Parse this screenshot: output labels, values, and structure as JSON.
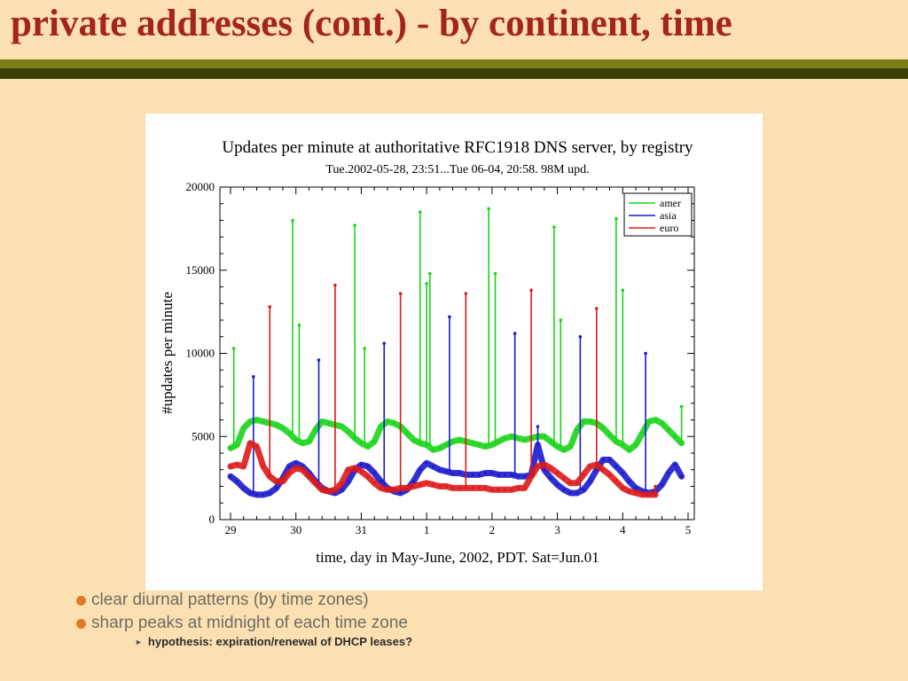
{
  "slide": {
    "title": "private addresses (cont.) - by continent, time",
    "bullets": [
      "clear diurnal patterns (by time zones)",
      "sharp peaks at midnight of each time zone"
    ],
    "sub_bullet": "hypothesis: expiration/renewal of DHCP leases?"
  },
  "colors": {
    "title": "#a3251b",
    "bar_top": "#7c7f17",
    "bar_bottom": "#3a4003",
    "background": "#fde0b2",
    "bullet": "#dc7a2a"
  },
  "chart_data": {
    "type": "line",
    "title": "Updates per minute at authoritative RFC1918 DNS server, by registry",
    "subtitle": "Tue.2002-05-28, 23:51...Tue 06-04, 20:58. 98M upd.",
    "xlabel": "time, day in May-June, 2002, PDT. Sat=Jun.01",
    "ylabel": "#updates per minute",
    "xlim": [
      28.99,
      35.3
    ],
    "ylim": [
      0,
      20000
    ],
    "x_ticks": [
      29,
      30,
      31,
      32,
      33,
      34,
      35,
      36
    ],
    "x_tick_labels": [
      "29",
      "30",
      "31",
      "1",
      "2",
      "3",
      "4",
      "5"
    ],
    "y_ticks": [
      0,
      5000,
      10000,
      15000,
      20000
    ],
    "y_tick_labels": [
      "0",
      "5000",
      "10000",
      "15000",
      "20000"
    ],
    "legend_position": "top-right",
    "grid": false,
    "series": [
      {
        "name": "amer",
        "color": "#19d419",
        "points": [
          [
            29.0,
            4300
          ],
          [
            29.1,
            4500
          ],
          [
            29.2,
            5500
          ],
          [
            29.3,
            5900
          ],
          [
            29.4,
            6000
          ],
          [
            29.5,
            5900
          ],
          [
            29.6,
            5800
          ],
          [
            29.7,
            5700
          ],
          [
            29.8,
            5500
          ],
          [
            29.9,
            5200
          ],
          [
            30.0,
            4800
          ],
          [
            30.1,
            4600
          ],
          [
            30.2,
            4700
          ],
          [
            30.3,
            5400
          ],
          [
            30.4,
            5900
          ],
          [
            30.5,
            5800
          ],
          [
            30.6,
            5700
          ],
          [
            30.7,
            5600
          ],
          [
            30.8,
            5300
          ],
          [
            30.9,
            4900
          ],
          [
            31.0,
            4600
          ],
          [
            31.1,
            4400
          ],
          [
            31.2,
            4700
          ],
          [
            31.3,
            5600
          ],
          [
            31.4,
            5900
          ],
          [
            31.5,
            5800
          ],
          [
            31.6,
            5600
          ],
          [
            31.7,
            5200
          ],
          [
            31.8,
            4800
          ],
          [
            31.9,
            4600
          ],
          [
            32.0,
            4500
          ],
          [
            32.1,
            4200
          ],
          [
            32.2,
            4300
          ],
          [
            32.3,
            4500
          ],
          [
            32.4,
            4700
          ],
          [
            32.5,
            4800
          ],
          [
            32.6,
            4700
          ],
          [
            32.7,
            4600
          ],
          [
            32.8,
            4500
          ],
          [
            32.9,
            4400
          ],
          [
            33.0,
            4500
          ],
          [
            33.1,
            4700
          ],
          [
            33.2,
            4900
          ],
          [
            33.3,
            5000
          ],
          [
            33.4,
            4900
          ],
          [
            33.5,
            4800
          ],
          [
            33.6,
            4900
          ],
          [
            33.7,
            5000
          ],
          [
            33.8,
            5000
          ],
          [
            33.9,
            4700
          ],
          [
            34.0,
            4400
          ],
          [
            34.1,
            4200
          ],
          [
            34.2,
            4400
          ],
          [
            34.3,
            5400
          ],
          [
            34.4,
            5900
          ],
          [
            34.5,
            5900
          ],
          [
            34.6,
            5800
          ],
          [
            34.7,
            5500
          ],
          [
            34.8,
            5100
          ],
          [
            34.9,
            4700
          ],
          [
            35.0,
            4500
          ],
          [
            35.1,
            4200
          ],
          [
            35.2,
            4500
          ],
          [
            35.3,
            5200
          ],
          [
            35.4,
            5900
          ],
          [
            35.5,
            6000
          ],
          [
            35.6,
            5800
          ],
          [
            35.7,
            5400
          ],
          [
            35.8,
            5000
          ],
          [
            35.9,
            4600
          ]
        ],
        "spikes": [
          [
            29.05,
            10300
          ],
          [
            29.95,
            18000
          ],
          [
            30.05,
            11700
          ],
          [
            30.9,
            17700
          ],
          [
            31.05,
            10300
          ],
          [
            31.9,
            18500
          ],
          [
            32.0,
            14200
          ],
          [
            32.05,
            14800
          ],
          [
            32.95,
            18700
          ],
          [
            33.05,
            14800
          ],
          [
            33.95,
            17600
          ],
          [
            34.05,
            12000
          ],
          [
            34.9,
            18100
          ],
          [
            35.0,
            13800
          ],
          [
            35.9,
            6800
          ]
        ]
      },
      {
        "name": "asia",
        "color": "#1a1acc",
        "points": [
          [
            29.0,
            2600
          ],
          [
            29.1,
            2300
          ],
          [
            29.2,
            1900
          ],
          [
            29.3,
            1600
          ],
          [
            29.4,
            1500
          ],
          [
            29.5,
            1500
          ],
          [
            29.6,
            1600
          ],
          [
            29.7,
            1900
          ],
          [
            29.8,
            2500
          ],
          [
            29.9,
            3200
          ],
          [
            30.0,
            3400
          ],
          [
            30.1,
            3200
          ],
          [
            30.2,
            2800
          ],
          [
            30.3,
            2300
          ],
          [
            30.4,
            1900
          ],
          [
            30.5,
            1700
          ],
          [
            30.6,
            1600
          ],
          [
            30.7,
            1800
          ],
          [
            30.8,
            2300
          ],
          [
            30.9,
            3000
          ],
          [
            31.0,
            3300
          ],
          [
            31.1,
            3200
          ],
          [
            31.2,
            2800
          ],
          [
            31.3,
            2300
          ],
          [
            31.4,
            1900
          ],
          [
            31.5,
            1700
          ],
          [
            31.6,
            1600
          ],
          [
            31.7,
            1800
          ],
          [
            31.8,
            2300
          ],
          [
            31.9,
            3000
          ],
          [
            32.0,
            3400
          ],
          [
            32.1,
            3200
          ],
          [
            32.2,
            3000
          ],
          [
            32.3,
            2900
          ],
          [
            32.4,
            2800
          ],
          [
            32.5,
            2800
          ],
          [
            32.6,
            2700
          ],
          [
            32.7,
            2700
          ],
          [
            32.8,
            2700
          ],
          [
            32.9,
            2800
          ],
          [
            33.0,
            2800
          ],
          [
            33.1,
            2700
          ],
          [
            33.2,
            2700
          ],
          [
            33.3,
            2700
          ],
          [
            33.4,
            2600
          ],
          [
            33.5,
            2600
          ],
          [
            33.6,
            2700
          ],
          [
            33.7,
            4500
          ],
          [
            33.8,
            3000
          ],
          [
            33.9,
            2500
          ],
          [
            34.0,
            2100
          ],
          [
            34.1,
            1800
          ],
          [
            34.2,
            1600
          ],
          [
            34.3,
            1600
          ],
          [
            34.4,
            1800
          ],
          [
            34.5,
            2300
          ],
          [
            34.6,
            3000
          ],
          [
            34.7,
            3600
          ],
          [
            34.8,
            3600
          ],
          [
            34.9,
            3200
          ],
          [
            35.0,
            2800
          ],
          [
            35.1,
            2300
          ],
          [
            35.2,
            1900
          ],
          [
            35.3,
            1700
          ],
          [
            35.4,
            1600
          ],
          [
            35.5,
            1700
          ],
          [
            35.6,
            2100
          ],
          [
            35.7,
            2800
          ],
          [
            35.8,
            3300
          ],
          [
            35.9,
            2600
          ]
        ],
        "spikes": [
          [
            29.35,
            8600
          ],
          [
            30.35,
            9600
          ],
          [
            31.35,
            10600
          ],
          [
            32.35,
            12200
          ],
          [
            33.35,
            11200
          ],
          [
            33.7,
            5600
          ],
          [
            34.35,
            11000
          ],
          [
            35.35,
            10000
          ]
        ]
      },
      {
        "name": "euro",
        "color": "#dd1a1a",
        "points": [
          [
            29.0,
            3200
          ],
          [
            29.1,
            3300
          ],
          [
            29.2,
            3200
          ],
          [
            29.3,
            4600
          ],
          [
            29.4,
            4400
          ],
          [
            29.5,
            3200
          ],
          [
            29.6,
            2600
          ],
          [
            29.7,
            2300
          ],
          [
            29.8,
            2300
          ],
          [
            29.9,
            2800
          ],
          [
            30.0,
            3100
          ],
          [
            30.1,
            3000
          ],
          [
            30.2,
            2600
          ],
          [
            30.3,
            2200
          ],
          [
            30.4,
            1800
          ],
          [
            30.5,
            1700
          ],
          [
            30.6,
            1800
          ],
          [
            30.7,
            2200
          ],
          [
            30.8,
            3000
          ],
          [
            30.9,
            3100
          ],
          [
            31.0,
            2900
          ],
          [
            31.1,
            2600
          ],
          [
            31.2,
            2200
          ],
          [
            31.3,
            1900
          ],
          [
            31.4,
            1800
          ],
          [
            31.5,
            1800
          ],
          [
            31.6,
            1900
          ],
          [
            31.7,
            1900
          ],
          [
            31.8,
            2000
          ],
          [
            31.9,
            2100
          ],
          [
            32.0,
            2200
          ],
          [
            32.1,
            2100
          ],
          [
            32.2,
            2000
          ],
          [
            32.3,
            2000
          ],
          [
            32.4,
            1900
          ],
          [
            32.5,
            1900
          ],
          [
            32.6,
            1900
          ],
          [
            32.7,
            1900
          ],
          [
            32.8,
            1900
          ],
          [
            32.9,
            1900
          ],
          [
            33.0,
            1800
          ],
          [
            33.1,
            1800
          ],
          [
            33.2,
            1800
          ],
          [
            33.3,
            1800
          ],
          [
            33.4,
            1900
          ],
          [
            33.5,
            1900
          ],
          [
            33.6,
            2600
          ],
          [
            33.7,
            3200
          ],
          [
            33.8,
            3300
          ],
          [
            33.9,
            3100
          ],
          [
            34.0,
            2800
          ],
          [
            34.1,
            2500
          ],
          [
            34.2,
            2200
          ],
          [
            34.3,
            2200
          ],
          [
            34.4,
            2700
          ],
          [
            34.5,
            3200
          ],
          [
            34.6,
            3300
          ],
          [
            34.7,
            3000
          ],
          [
            34.8,
            2700
          ],
          [
            34.9,
            2300
          ],
          [
            35.0,
            1900
          ],
          [
            35.1,
            1700
          ],
          [
            35.2,
            1600
          ],
          [
            35.3,
            1500
          ],
          [
            35.4,
            1500
          ],
          [
            35.5,
            1500
          ]
        ],
        "spikes": [
          [
            29.6,
            12800
          ],
          [
            30.6,
            14100
          ],
          [
            31.6,
            13600
          ],
          [
            32.6,
            13600
          ],
          [
            33.6,
            13800
          ],
          [
            34.6,
            12700
          ],
          [
            35.5,
            2000
          ]
        ]
      }
    ]
  }
}
